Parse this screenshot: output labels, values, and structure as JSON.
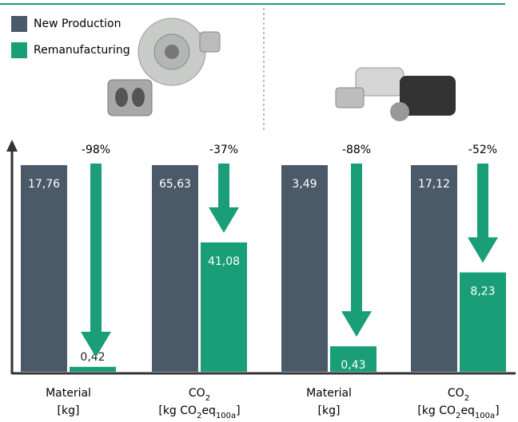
{
  "chart_data": {
    "type": "bar",
    "series": [
      {
        "name": "New Production",
        "color": "#4a5a68",
        "values": [
          17.76,
          65.63,
          3.49,
          17.12
        ],
        "value_labels": [
          "17,76",
          "65,63",
          "3,49",
          "17,12"
        ]
      },
      {
        "name": "Remanufacturing",
        "color": "#1a9e77",
        "values": [
          0.42,
          41.08,
          0.43,
          8.23
        ],
        "value_labels": [
          "0,42",
          "41,08",
          "0,43",
          "8,23"
        ]
      }
    ],
    "categories": [
      {
        "name": [
          {
            "text": "Material"
          }
        ],
        "unit": [
          {
            "text": "[kg]"
          }
        ]
      },
      {
        "name": [
          {
            "text": "CO"
          },
          {
            "text": "2",
            "sub": true
          }
        ],
        "unit": [
          {
            "text": "[kg CO"
          },
          {
            "text": "2",
            "sub": true
          },
          {
            "text": "eq"
          },
          {
            "text": "100a",
            "sub": true
          },
          {
            "text": "]"
          }
        ]
      },
      {
        "name": [
          {
            "text": "Material"
          }
        ],
        "unit": [
          {
            "text": "[kg]"
          }
        ]
      },
      {
        "name": [
          {
            "text": "CO"
          },
          {
            "text": "2",
            "sub": true
          }
        ],
        "unit": [
          {
            "text": "[kg CO"
          },
          {
            "text": "2",
            "sub": true
          },
          {
            "text": "eq"
          },
          {
            "text": "100a",
            "sub": true
          },
          {
            "text": "]"
          }
        ]
      }
    ],
    "changes": [
      "-98%",
      "-37%",
      "-88%",
      "-52%"
    ]
  }
}
